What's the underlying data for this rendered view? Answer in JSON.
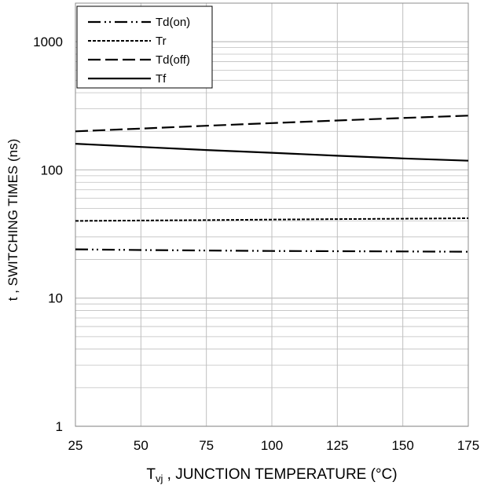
{
  "chart_data": {
    "type": "line",
    "x": [
      25,
      50,
      75,
      100,
      125,
      150,
      175
    ],
    "xlim": [
      25,
      175
    ],
    "ylim": [
      1,
      2000
    ],
    "yscale": "log",
    "x_ticks": [
      "25",
      "50",
      "75",
      "100",
      "125",
      "150",
      "175"
    ],
    "y_ticks": [
      "1",
      "10",
      "100",
      "1000"
    ],
    "xlabel_main": "T",
    "xlabel_sub": "vj",
    "xlabel_rest": " , JUNCTION TEMPERATURE (°C)",
    "ylabel": "t , SWITCHING TIMES (ns)",
    "grid": true,
    "legend_position": "top-left",
    "series": [
      {
        "name": "Td(on)",
        "style": "dash-dot-dot",
        "values": [
          24,
          23.7,
          23.5,
          23.3,
          23.2,
          23.1,
          23
        ]
      },
      {
        "name": "Tr",
        "style": "dotted",
        "values": [
          40,
          40.3,
          40.6,
          41,
          41.3,
          41.6,
          42
        ]
      },
      {
        "name": "Td(off)",
        "style": "long-dash",
        "values": [
          200,
          210,
          221,
          232,
          243,
          254,
          265
        ]
      },
      {
        "name": "Tf",
        "style": "solid",
        "values": [
          160,
          151,
          143,
          136,
          129,
          123,
          118
        ]
      }
    ],
    "colors": {
      "line": "#000000",
      "grid": "#bfbfbf",
      "background": "#ffffff"
    }
  }
}
